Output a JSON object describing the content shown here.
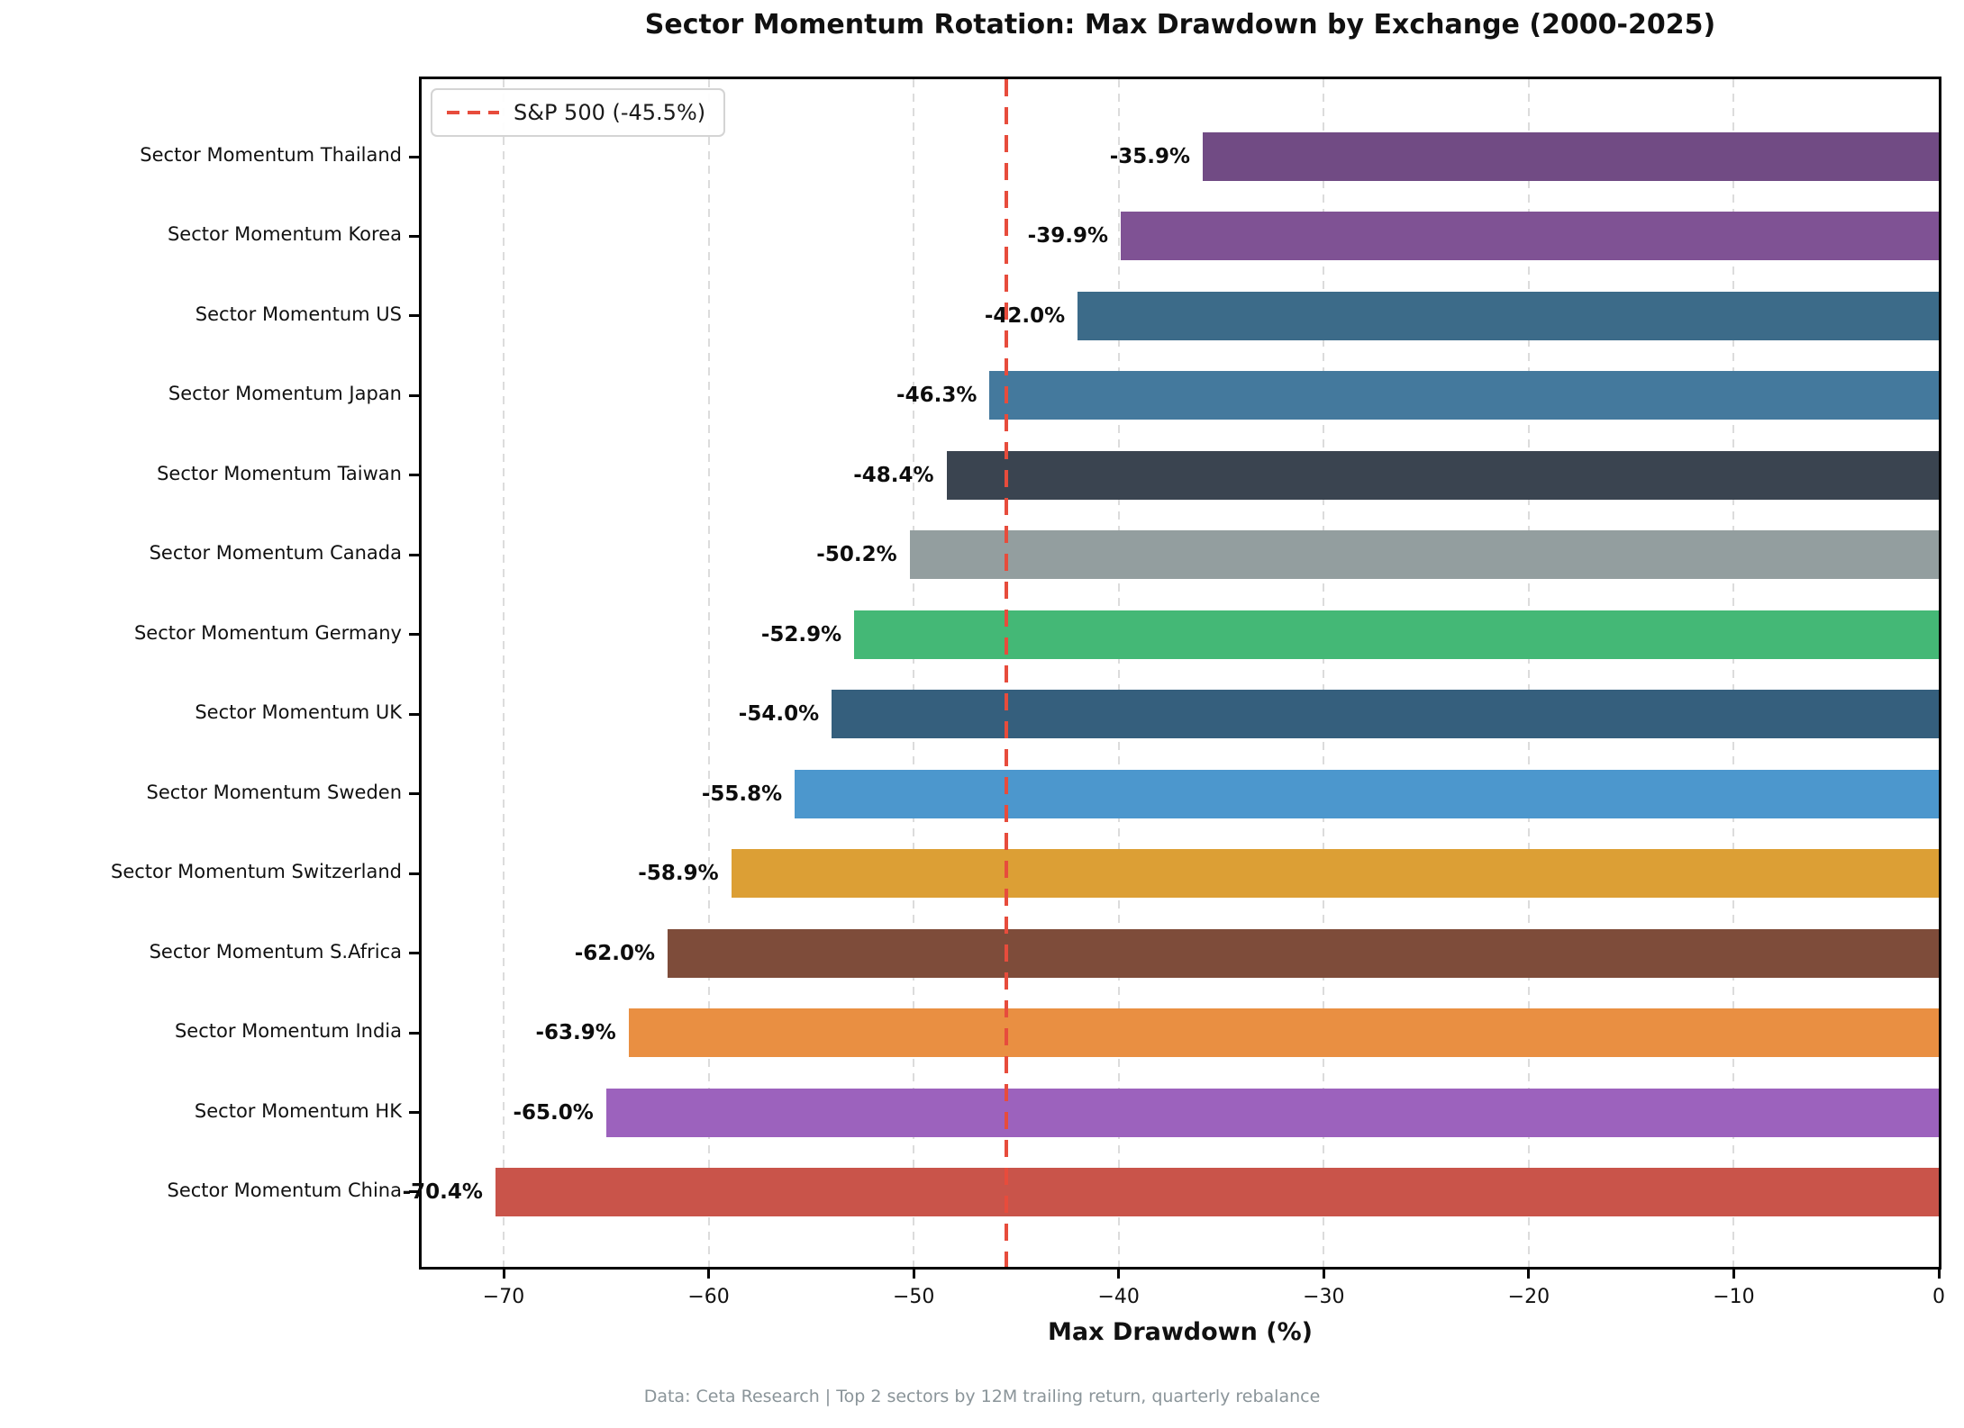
{
  "caption": "Data: Ceta Research | Top 2 sectors by 12M trailing return, quarterly rebalance",
  "chart_data": {
    "type": "bar",
    "orientation": "horizontal",
    "title": "Sector Momentum Rotation: Max Drawdown by Exchange (2000-2025)",
    "xlabel": "Max Drawdown (%)",
    "xlim": [
      -74,
      0
    ],
    "grid": "vertical dashed gridlines at x ticks",
    "legend_position": "upper left",
    "categories": [
      "Sector Momentum Thailand",
      "Sector Momentum Korea",
      "Sector Momentum US",
      "Sector Momentum Japan",
      "Sector Momentum Taiwan",
      "Sector Momentum Canada",
      "Sector Momentum Germany",
      "Sector Momentum UK",
      "Sector Momentum Sweden",
      "Sector Momentum Switzerland",
      "Sector Momentum S.Africa",
      "Sector Momentum India",
      "Sector Momentum HK",
      "Sector Momentum China"
    ],
    "values": [
      -35.9,
      -39.9,
      -42.0,
      -46.3,
      -48.4,
      -50.2,
      -52.9,
      -54.0,
      -55.8,
      -58.9,
      -62.0,
      -63.9,
      -65.0,
      -70.4
    ],
    "value_labels": [
      "-35.9%",
      "-39.9%",
      "-42.0%",
      "-46.3%",
      "-48.4%",
      "-50.2%",
      "-52.9%",
      "-54.0%",
      "-55.8%",
      "-58.9%",
      "-62.0%",
      "-63.9%",
      "-65.0%",
      "-70.4%"
    ],
    "bar_colors": [
      "#714B84",
      "#7F5294",
      "#3C6B89",
      "#44799D",
      "#3A4450",
      "#939E9F",
      "#44B876",
      "#355F7D",
      "#4C97CD",
      "#DC9F35",
      "#7E4C3A",
      "#E98F42",
      "#9C62BD",
      "#C9544A"
    ],
    "x_ticks": {
      "values": [
        -70,
        -60,
        -50,
        -40,
        -30,
        -20,
        -10,
        0
      ],
      "labels": [
        "−70",
        "−60",
        "−50",
        "−40",
        "−30",
        "−20",
        "−10",
        "0"
      ]
    },
    "reference_line": {
      "name": "S&P 500",
      "value": -45.5,
      "label": "S&P 500 (-45.5%)",
      "color": "#E74C3C",
      "style": "dashed"
    }
  },
  "colors": {
    "grid": "#DCDCDC",
    "spine": "#000000",
    "caption_text": "#8A9499",
    "value_label_text": "#0D0D0D"
  }
}
